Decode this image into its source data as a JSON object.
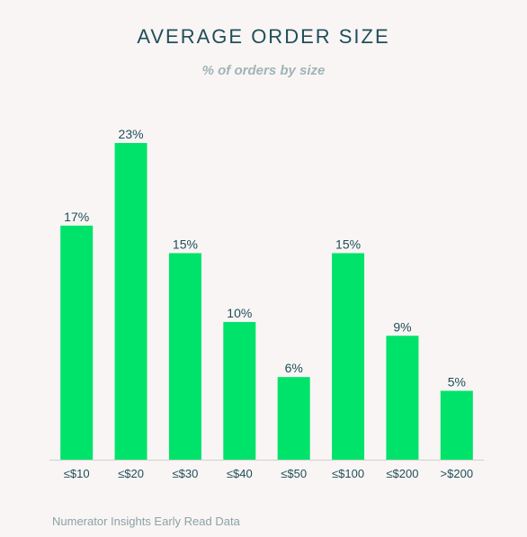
{
  "title": "AVERAGE ORDER SIZE",
  "subtitle": "% of orders by size",
  "footer": "Numerator Insights Early Read Data",
  "colors": {
    "bar": "#00e36a",
    "label": "#1f4e5a",
    "axis": "#cfcfcf"
  },
  "chart_data": {
    "type": "bar",
    "title": "AVERAGE ORDER SIZE",
    "subtitle": "% of orders by size",
    "categories": [
      "≤$10",
      "≤$20",
      "≤$30",
      "≤$40",
      "≤$50",
      "≤$100",
      "≤$200",
      ">$200"
    ],
    "values": [
      17,
      23,
      15,
      10,
      6,
      15,
      9,
      5
    ],
    "value_labels": [
      "17%",
      "23%",
      "15%",
      "10%",
      "6%",
      "15%",
      "9%",
      "5%"
    ],
    "ylim": [
      0,
      23
    ],
    "grid": false,
    "legend": "none"
  }
}
